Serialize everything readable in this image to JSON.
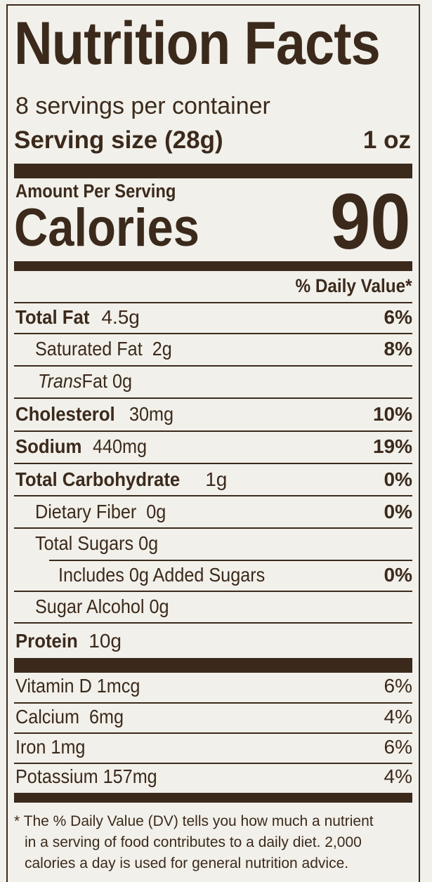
{
  "title": "Nutrition Facts",
  "servings": "8 servings per container",
  "serving_size": {
    "label": "Serving size (28g)",
    "value": "1 oz"
  },
  "amount_per_serving": "Amount Per Serving",
  "calories": {
    "label": "Calories",
    "value": 90
  },
  "daily_value_header": "% Daily Value*",
  "nutrients": [
    {
      "name": "Total Fat",
      "amount": "4.5g",
      "dv": "6%"
    },
    {
      "name": "Saturated Fat",
      "amount": "2g",
      "dv": "8%"
    },
    {
      "name_italic": "Trans",
      "name": "Fat",
      "amount": "0g"
    },
    {
      "name": "Cholesterol",
      "amount": "30mg",
      "dv": "10%"
    },
    {
      "name": "Sodium",
      "amount": "440mg",
      "dv": "19%"
    },
    {
      "name": "Total Carbohydrate",
      "amount": "1g",
      "dv": "0%"
    },
    {
      "name": "Dietary Fiber",
      "amount": "0g",
      "dv": "0%"
    },
    {
      "name": "Total Sugars",
      "amount": "0g"
    },
    {
      "name": "Includes 0g Added Sugars",
      "dv": "0%"
    },
    {
      "name": "Sugar Alcohol",
      "amount": "0g"
    },
    {
      "name": "Protein",
      "amount": "10g"
    }
  ],
  "vitamins": [
    {
      "name": "Vitamin D",
      "amount": "1mcg",
      "dv": "6%"
    },
    {
      "name": "Calcium",
      "amount": "6mg",
      "dv": "4%"
    },
    {
      "name": "Iron",
      "amount": "1mg",
      "dv": "6%"
    },
    {
      "name": "Potassium",
      "amount": "157mg",
      "dv": "4%"
    }
  ],
  "footnote": [
    "* The % Daily Value (DV) tells you how much a nutrient",
    "in a serving of food contributes to a daily diet. 2,000",
    "calories a day is used for general nutrition advice."
  ]
}
